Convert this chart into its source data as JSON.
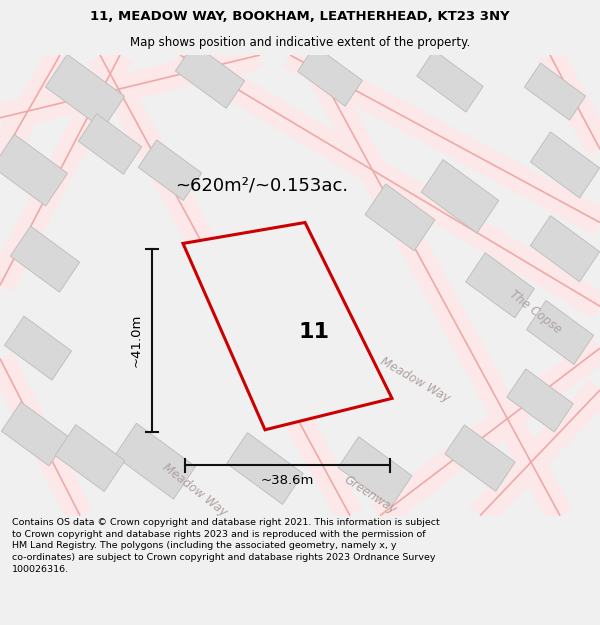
{
  "title_line1": "11, MEADOW WAY, BOOKHAM, LEATHERHEAD, KT23 3NY",
  "title_line2": "Map shows position and indicative extent of the property.",
  "footer_lines": [
    "Contains OS data © Crown copyright and database right 2021. This information is subject to Crown copyright and database rights 2023 and is reproduced with the permission of",
    "HM Land Registry. The polygons (including the associated geometry, namely x, y co-ordinates) are subject to Crown copyright and database rights 2023 Ordnance Survey",
    "100026316."
  ],
  "area_label": "~620m²/~0.153ac.",
  "width_label": "~38.6m",
  "height_label": "~41.0m",
  "house_number": "11",
  "map_bg": "#ffffff",
  "road_fill_color": "#fce8e8",
  "road_line_color": "#f0a8a8",
  "building_fill": "#d8d8d8",
  "building_edge": "#c0c0c0",
  "plot_fill": "#f0f0f0",
  "plot_edge_color": "#cc0000",
  "dim_color": "#111111",
  "street_label_color": "#b0a0a0",
  "title_bg": "#ffffff",
  "footer_bg": "#f0f0f0",
  "fig_bg": "#f0f0f0",
  "figsize": [
    6.0,
    6.25
  ],
  "dpi": 100,
  "road_lw_fill": 20,
  "road_lw_edge": 1.2,
  "plot_lw": 2.2,
  "building_lw": 0.7
}
